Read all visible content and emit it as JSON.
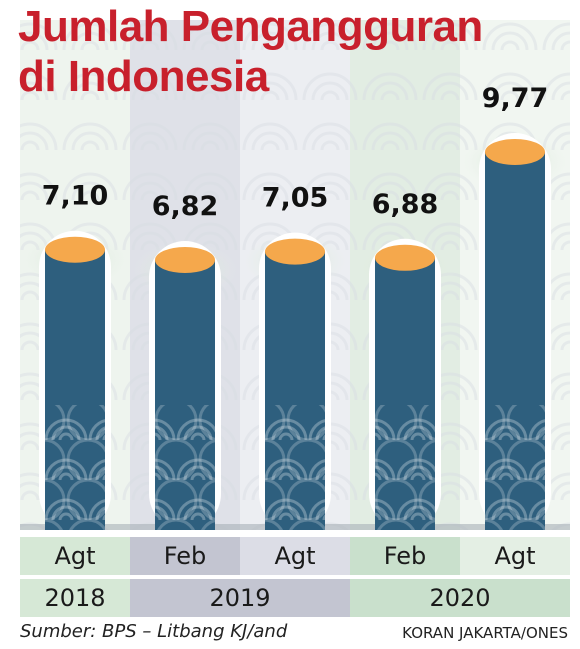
{
  "title": {
    "line1": "Jumlah Pengangguran",
    "line2": "di Indonesia"
  },
  "colors": {
    "title": "#c8202c",
    "bar": "#2e5f7e",
    "bar_top": "#f5a84c",
    "year_2018": "#d6e8d6",
    "year_2019": "#c3c5d1",
    "year_2020": "#c9e0cc"
  },
  "chart_data": {
    "type": "bar",
    "title": "Jumlah Pengangguran di Indonesia",
    "categories": [
      "Agt",
      "Feb",
      "Agt",
      "Feb",
      "Agt"
    ],
    "years": [
      "2018",
      "2019",
      "2019",
      "2020",
      "2020"
    ],
    "values": [
      7.1,
      6.82,
      7.05,
      6.88,
      9.77
    ],
    "value_labels": [
      "7,10",
      "6,82",
      "7,05",
      "6,88",
      "9,77"
    ],
    "xlabel": "",
    "ylabel": "",
    "grid": false,
    "legend": "none"
  },
  "axis": {
    "months": [
      "Agt",
      "Feb",
      "Agt",
      "Feb",
      "Agt"
    ],
    "year_groups": [
      "2018",
      "2019",
      "2020"
    ]
  },
  "footer": {
    "source": "Sumber: BPS – Litbang KJ/and",
    "credit": "KORAN JAKARTA/ONES"
  }
}
